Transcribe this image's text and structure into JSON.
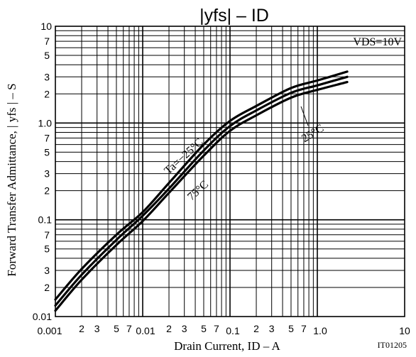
{
  "chart_data": {
    "type": "line",
    "title": "|yfs| – ID",
    "xlabel": "Drain Current, ID – A",
    "ylabel": "Forward Transfer Admittance, | yfs | – S",
    "condition_label": "VDS=10V",
    "figure_id": "IT01205",
    "x_scale": "log",
    "y_scale": "log",
    "xlim": [
      0.001,
      10
    ],
    "ylim": [
      0.01,
      10
    ],
    "x_decade_labels": [
      "0.001",
      "0.01",
      "0.1",
      "1.0",
      "10"
    ],
    "y_decade_labels": [
      "0.01",
      "0.1",
      "1.0",
      "10"
    ],
    "minor_labels": [
      "2",
      "3",
      "5",
      "7"
    ],
    "grid": true,
    "series": [
      {
        "name": "Ta=−25°C",
        "x": [
          0.001,
          0.002,
          0.005,
          0.01,
          0.02,
          0.05,
          0.1,
          0.2,
          0.5,
          1.0,
          2.2
        ],
        "y": [
          0.015,
          0.031,
          0.07,
          0.12,
          0.24,
          0.6,
          1.05,
          1.5,
          2.3,
          2.75,
          3.4
        ]
      },
      {
        "name": "25°C",
        "x": [
          0.001,
          0.002,
          0.005,
          0.01,
          0.02,
          0.05,
          0.1,
          0.2,
          0.5,
          1.0,
          2.2
        ],
        "y": [
          0.013,
          0.027,
          0.062,
          0.11,
          0.21,
          0.52,
          0.93,
          1.35,
          2.05,
          2.45,
          3.0
        ]
      },
      {
        "name": "75°C",
        "x": [
          0.001,
          0.002,
          0.005,
          0.01,
          0.02,
          0.05,
          0.1,
          0.2,
          0.5,
          1.0,
          2.2
        ],
        "y": [
          0.0115,
          0.024,
          0.055,
          0.097,
          0.19,
          0.46,
          0.83,
          1.2,
          1.83,
          2.2,
          2.65
        ]
      }
    ],
    "annotations": [
      "Ta=−25°C",
      "75°C",
      "25°C"
    ]
  }
}
